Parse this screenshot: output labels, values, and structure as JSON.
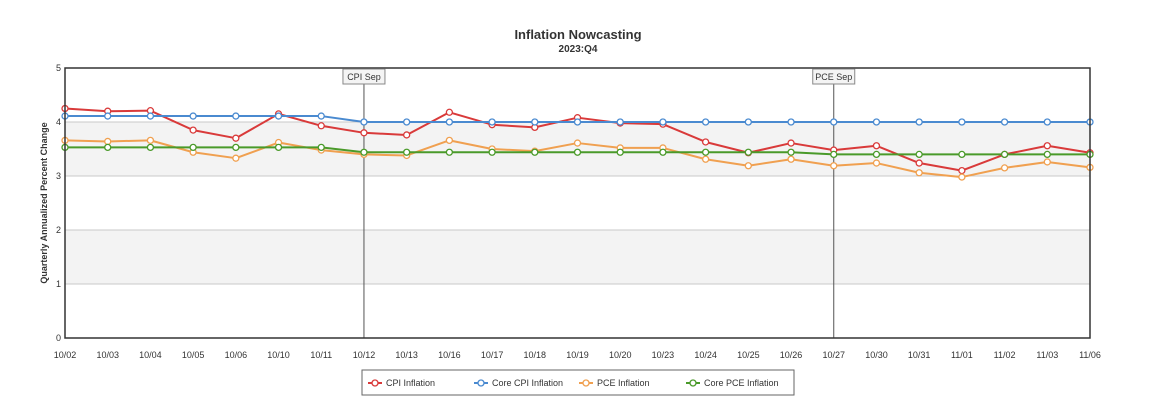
{
  "chart_data": {
    "type": "line",
    "title": "Inflation Nowcasting",
    "subtitle": "2023:Q4",
    "xlabel": "",
    "ylabel": "Quarterly Annualized Percent Change",
    "categories": [
      "10/02",
      "10/03",
      "10/04",
      "10/05",
      "10/06",
      "10/10",
      "10/11",
      "10/12",
      "10/13",
      "10/16",
      "10/17",
      "10/18",
      "10/19",
      "10/20",
      "10/23",
      "10/24",
      "10/25",
      "10/26",
      "10/27",
      "10/30",
      "10/31",
      "11/01",
      "11/02",
      "11/03",
      "11/06"
    ],
    "ylim": [
      0,
      5
    ],
    "yticks": [
      0,
      1,
      2,
      3,
      4,
      5
    ],
    "grid": true,
    "legend_position": "bottom-center",
    "annotations": [
      {
        "label": "CPI Sep",
        "at": "10/12"
      },
      {
        "label": "PCE Sep",
        "at": "10/27"
      }
    ],
    "series": [
      {
        "name": "CPI Inflation",
        "color": "#d93a3a",
        "values": [
          4.25,
          4.2,
          4.21,
          3.85,
          3.7,
          4.15,
          3.93,
          3.8,
          3.76,
          4.18,
          3.95,
          3.9,
          4.08,
          3.98,
          3.96,
          3.63,
          3.43,
          3.61,
          3.48,
          3.56,
          3.24,
          3.1,
          3.4,
          3.56,
          3.43
        ]
      },
      {
        "name": "Core CPI Inflation",
        "color": "#4a8ad0",
        "values": [
          4.11,
          4.11,
          4.11,
          4.11,
          4.11,
          4.11,
          4.11,
          4.0,
          4.0,
          4.0,
          4.0,
          4.0,
          4.0,
          4.0,
          4.0,
          4.0,
          4.0,
          4.0,
          4.0,
          4.0,
          4.0,
          4.0,
          4.0,
          4.0,
          4.0
        ]
      },
      {
        "name": "PCE Inflation",
        "color": "#f0a050",
        "values": [
          3.66,
          3.64,
          3.66,
          3.44,
          3.33,
          3.62,
          3.48,
          3.4,
          3.38,
          3.66,
          3.5,
          3.46,
          3.61,
          3.52,
          3.52,
          3.31,
          3.19,
          3.31,
          3.19,
          3.24,
          3.06,
          2.98,
          3.15,
          3.26,
          3.16
        ]
      },
      {
        "name": "Core PCE Inflation",
        "color": "#4a9a2a",
        "values": [
          3.53,
          3.53,
          3.53,
          3.53,
          3.53,
          3.53,
          3.53,
          3.44,
          3.44,
          3.44,
          3.44,
          3.44,
          3.44,
          3.44,
          3.44,
          3.44,
          3.44,
          3.44,
          3.4,
          3.4,
          3.4,
          3.4,
          3.4,
          3.4,
          3.4
        ]
      }
    ]
  }
}
